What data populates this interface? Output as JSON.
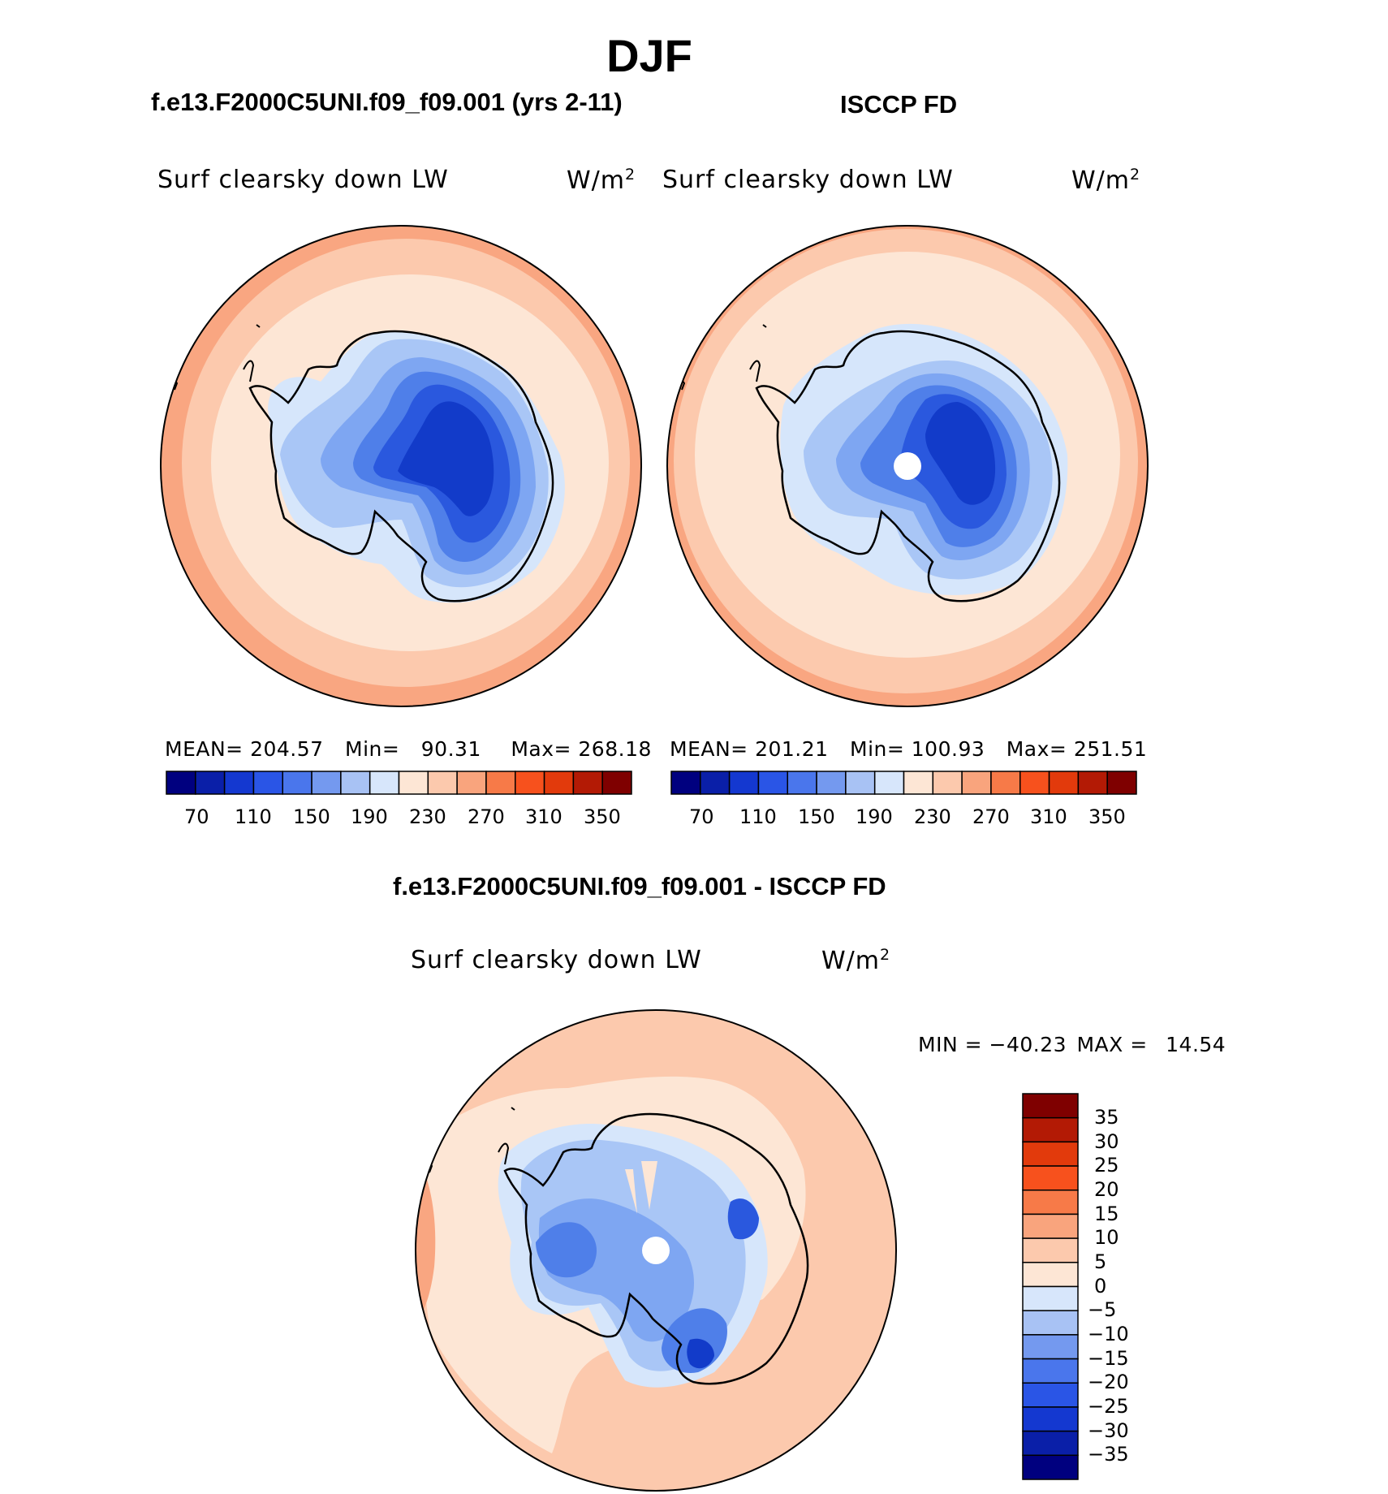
{
  "title": "DJF",
  "colors": {
    "bg": "#ffffff",
    "ocean_warm": "#fcc9ad",
    "ocean_pale": "#fde6d5",
    "ocean_warmer": "#f9a681",
    "ice_pale": "#d6e6fb",
    "blue_1": "#a9c6f6",
    "blue_2": "#7ea6f2",
    "blue_3": "#4f7fe9",
    "blue_4": "#2a58de",
    "blue_5": "#123bc9",
    "coast": "#000000"
  },
  "panels": {
    "model": {
      "case_title": "f.e13.F2000C5UNI.f09_f09.001 (yrs 2-11)",
      "var_label": "Surf  clearsky  down  LW",
      "units": "W/m",
      "units_sup": "2",
      "mean_label": "MEAN=",
      "mean": "204.57",
      "min_label": "Min=",
      "min": "90.31",
      "max_label": "Max=",
      "max": "268.18"
    },
    "obs": {
      "case_title": "ISCCP FD",
      "var_label": "Surf  clearsky  down  LW",
      "units": "W/m",
      "units_sup": "2",
      "mean_label": "MEAN=",
      "mean": "201.21",
      "min_label": "Min=",
      "min": "100.93",
      "max_label": "Max=",
      "max": "251.51"
    },
    "diff": {
      "case_title": "f.e13.F2000C5UNI.f09_f09.001 - ISCCP FD",
      "var_label": "Surf  clearsky  down  LW",
      "units": "W/m",
      "units_sup": "2",
      "min_label": "MIN =",
      "min": "−40.23",
      "max_label": "MAX =",
      "max": "14.54"
    }
  },
  "colorbar_abs": {
    "ticks": [
      "70",
      "110",
      "150",
      "190",
      "230",
      "270",
      "310",
      "350"
    ],
    "colors": [
      "#00007f",
      "#0a1fa8",
      "#1438d0",
      "#2a55e6",
      "#4a76ec",
      "#7499ef",
      "#a8c2f4",
      "#d7e6fb",
      "#fde6d5",
      "#fcc9ad",
      "#f9a47d",
      "#f77a48",
      "#f7511d",
      "#e23a0c",
      "#b31a05",
      "#7f0000"
    ]
  },
  "colorbar_diff": {
    "ticks": [
      "35",
      "30",
      "25",
      "20",
      "15",
      "10",
      "5",
      "0",
      "−5",
      "−10",
      "−15",
      "−20",
      "−25",
      "−30",
      "−35"
    ],
    "colors": [
      "#7f0000",
      "#b31a05",
      "#e23a0c",
      "#f7511d",
      "#f77a48",
      "#f9a47d",
      "#fcc9ad",
      "#fde6d5",
      "#d7e6fb",
      "#a8c2f4",
      "#7499ef",
      "#4a76ec",
      "#2a55e6",
      "#1438d0",
      "#0a1fa8",
      "#00007f"
    ]
  }
}
